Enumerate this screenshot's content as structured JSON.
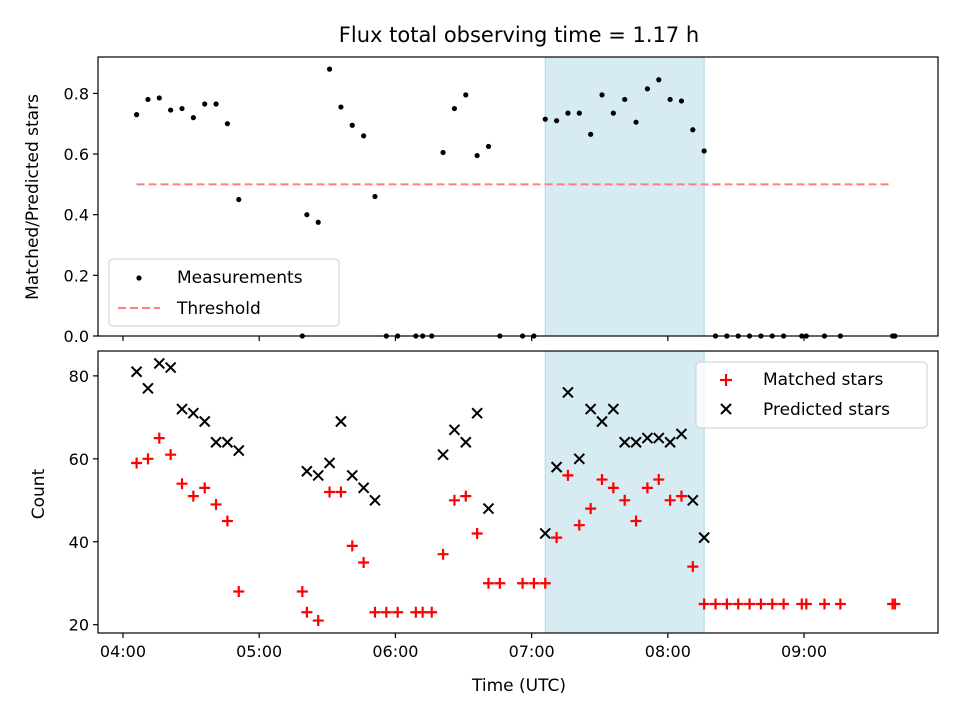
{
  "title": "Flux total observing time = 1.17 h",
  "xlabel": "Time (UTC)",
  "x_ticks": [
    "04:00",
    "05:00",
    "06:00",
    "07:00",
    "08:00",
    "09:00"
  ],
  "shaded_interval": [
    "07:06",
    "08:16"
  ],
  "colors": {
    "measurements": "#000000",
    "threshold": "#ff7f7f",
    "matched": "#ff0000",
    "predicted": "#000000",
    "shade": "#add8e6"
  },
  "chart_data": [
    {
      "type": "scatter",
      "ylabel": "Matched/Predicted stars",
      "xlim": [
        "03:49",
        "09:59"
      ],
      "ylim": [
        0,
        0.92
      ],
      "y_ticks": [
        "0.0",
        "0.2",
        "0.4",
        "0.6",
        "0.8"
      ],
      "grid": false,
      "legend_position": "lower-left",
      "series": [
        {
          "name": "Measurements",
          "marker": "dot",
          "points": [
            [
              "04:06",
              0.73
            ],
            [
              "04:11",
              0.78
            ],
            [
              "04:16",
              0.785
            ],
            [
              "04:21",
              0.745
            ],
            [
              "04:26",
              0.75
            ],
            [
              "04:31",
              0.72
            ],
            [
              "04:36",
              0.765
            ],
            [
              "04:41",
              0.765
            ],
            [
              "04:46",
              0.7
            ],
            [
              "04:51",
              0.45
            ],
            [
              "05:19",
              0.0
            ],
            [
              "05:21",
              0.4
            ],
            [
              "05:26",
              0.375
            ],
            [
              "05:31",
              0.88
            ],
            [
              "05:36",
              0.755
            ],
            [
              "05:41",
              0.695
            ],
            [
              "05:46",
              0.66
            ],
            [
              "05:51",
              0.46
            ],
            [
              "05:56",
              0.0
            ],
            [
              "06:01",
              0.0
            ],
            [
              "06:09",
              0.0
            ],
            [
              "06:12",
              0.0
            ],
            [
              "06:16",
              0.0
            ],
            [
              "06:21",
              0.605
            ],
            [
              "06:26",
              0.75
            ],
            [
              "06:31",
              0.795
            ],
            [
              "06:36",
              0.595
            ],
            [
              "06:41",
              0.625
            ],
            [
              "06:46",
              0.0
            ],
            [
              "06:56",
              0.0
            ],
            [
              "07:01",
              0.0
            ],
            [
              "07:06",
              0.715
            ],
            [
              "07:11",
              0.71
            ],
            [
              "07:16",
              0.735
            ],
            [
              "07:21",
              0.735
            ],
            [
              "07:26",
              0.665
            ],
            [
              "07:31",
              0.795
            ],
            [
              "07:36",
              0.735
            ],
            [
              "07:41",
              0.78
            ],
            [
              "07:46",
              0.705
            ],
            [
              "07:51",
              0.815
            ],
            [
              "07:56",
              0.845
            ],
            [
              "08:01",
              0.78
            ],
            [
              "08:06",
              0.775
            ],
            [
              "08:11",
              0.68
            ],
            [
              "08:16",
              0.61
            ],
            [
              "08:21",
              0.0
            ],
            [
              "08:26",
              0.0
            ],
            [
              "08:31",
              0.0
            ],
            [
              "08:36",
              0.0
            ],
            [
              "08:41",
              0.0
            ],
            [
              "08:46",
              0.0
            ],
            [
              "08:51",
              0.0
            ],
            [
              "08:59",
              0.0
            ],
            [
              "09:01",
              0.0
            ],
            [
              "09:09",
              0.0
            ],
            [
              "09:16",
              0.0
            ],
            [
              "09:39",
              0.0
            ],
            [
              "09:40",
              0.0
            ]
          ]
        },
        {
          "name": "Threshold",
          "style": "dashed",
          "x": [
            "04:06",
            "09:39"
          ],
          "y": [
            0.5,
            0.5
          ]
        }
      ]
    },
    {
      "type": "scatter",
      "ylabel": "Count",
      "xlim": [
        "03:49",
        "09:59"
      ],
      "ylim": [
        18,
        86
      ],
      "y_ticks": [
        "20",
        "40",
        "60",
        "80"
      ],
      "grid": false,
      "legend_position": "top-right",
      "series": [
        {
          "name": "Matched stars",
          "marker": "plus",
          "points": [
            [
              "04:06",
              59
            ],
            [
              "04:11",
              60
            ],
            [
              "04:16",
              65
            ],
            [
              "04:21",
              61
            ],
            [
              "04:26",
              54
            ],
            [
              "04:31",
              51
            ],
            [
              "04:36",
              53
            ],
            [
              "04:41",
              49
            ],
            [
              "04:46",
              45
            ],
            [
              "04:51",
              28
            ],
            [
              "05:19",
              28
            ],
            [
              "05:21",
              23
            ],
            [
              "05:26",
              21
            ],
            [
              "05:31",
              52
            ],
            [
              "05:36",
              52
            ],
            [
              "05:41",
              39
            ],
            [
              "05:46",
              35
            ],
            [
              "05:51",
              23
            ],
            [
              "05:56",
              23
            ],
            [
              "06:01",
              23
            ],
            [
              "06:09",
              23
            ],
            [
              "06:12",
              23
            ],
            [
              "06:16",
              23
            ],
            [
              "06:21",
              37
            ],
            [
              "06:26",
              50
            ],
            [
              "06:31",
              51
            ],
            [
              "06:36",
              42
            ],
            [
              "06:41",
              30
            ],
            [
              "06:46",
              30
            ],
            [
              "06:56",
              30
            ],
            [
              "07:01",
              30
            ],
            [
              "07:06",
              30
            ],
            [
              "07:11",
              41
            ],
            [
              "07:16",
              56
            ],
            [
              "07:21",
              44
            ],
            [
              "07:26",
              48
            ],
            [
              "07:31",
              55
            ],
            [
              "07:36",
              53
            ],
            [
              "07:41",
              50
            ],
            [
              "07:46",
              45
            ],
            [
              "07:51",
              53
            ],
            [
              "07:56",
              55
            ],
            [
              "08:01",
              50
            ],
            [
              "08:06",
              51
            ],
            [
              "08:11",
              34
            ],
            [
              "08:16",
              25
            ],
            [
              "08:21",
              25
            ],
            [
              "08:26",
              25
            ],
            [
              "08:31",
              25
            ],
            [
              "08:36",
              25
            ],
            [
              "08:41",
              25
            ],
            [
              "08:46",
              25
            ],
            [
              "08:51",
              25
            ],
            [
              "08:59",
              25
            ],
            [
              "09:01",
              25
            ],
            [
              "09:09",
              25
            ],
            [
              "09:16",
              25
            ],
            [
              "09:39",
              25
            ],
            [
              "09:40",
              25
            ]
          ]
        },
        {
          "name": "Predicted stars",
          "marker": "x",
          "points": [
            [
              "04:06",
              81
            ],
            [
              "04:11",
              77
            ],
            [
              "04:16",
              83
            ],
            [
              "04:21",
              82
            ],
            [
              "04:26",
              72
            ],
            [
              "04:31",
              71
            ],
            [
              "04:36",
              69
            ],
            [
              "04:41",
              64
            ],
            [
              "04:46",
              64
            ],
            [
              "04:51",
              62
            ],
            [
              "05:21",
              57
            ],
            [
              "05:26",
              56
            ],
            [
              "05:31",
              59
            ],
            [
              "05:36",
              69
            ],
            [
              "05:41",
              56
            ],
            [
              "05:46",
              53
            ],
            [
              "05:51",
              50
            ],
            [
              "06:21",
              61
            ],
            [
              "06:26",
              67
            ],
            [
              "06:31",
              64
            ],
            [
              "06:36",
              71
            ],
            [
              "06:41",
              48
            ],
            [
              "07:06",
              42
            ],
            [
              "07:11",
              58
            ],
            [
              "07:16",
              76
            ],
            [
              "07:21",
              60
            ],
            [
              "07:26",
              72
            ],
            [
              "07:31",
              69
            ],
            [
              "07:36",
              72
            ],
            [
              "07:41",
              64
            ],
            [
              "07:46",
              64
            ],
            [
              "07:51",
              65
            ],
            [
              "07:56",
              65
            ],
            [
              "08:01",
              64
            ],
            [
              "08:06",
              66
            ],
            [
              "08:11",
              50
            ],
            [
              "08:16",
              41
            ]
          ]
        }
      ]
    }
  ]
}
